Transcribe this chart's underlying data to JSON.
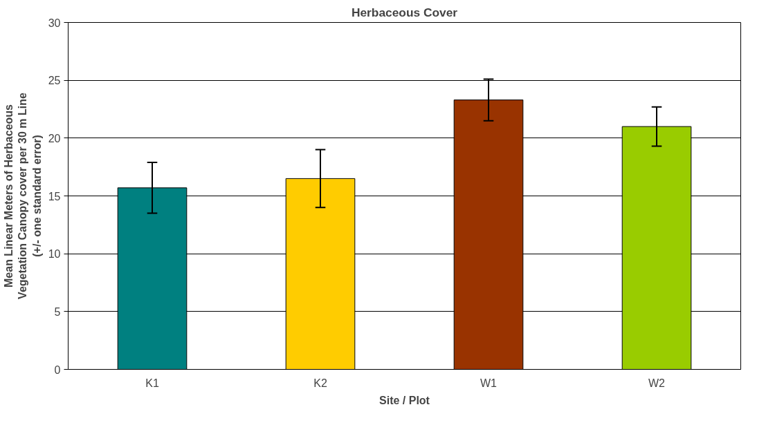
{
  "chart_data": {
    "type": "bar",
    "title": "Herbaceous Cover",
    "xlabel": "Site / Plot",
    "ylabel": "Mean Linear Meters of Herbaceous\nVegetation Canopy cover per 30 m Line\n(+/- one standard error)",
    "categories": [
      "K1",
      "K2",
      "W1",
      "W2"
    ],
    "values": [
      15.7,
      16.5,
      23.3,
      21.0
    ],
    "colors": [
      "#008080",
      "#ffcc00",
      "#993300",
      "#99cc00"
    ],
    "errors": [
      2.2,
      2.5,
      1.8,
      1.7
    ],
    "ylim": [
      0,
      30
    ],
    "yticks": [
      0,
      5,
      10,
      15,
      20,
      25,
      30
    ],
    "grid": "y"
  }
}
